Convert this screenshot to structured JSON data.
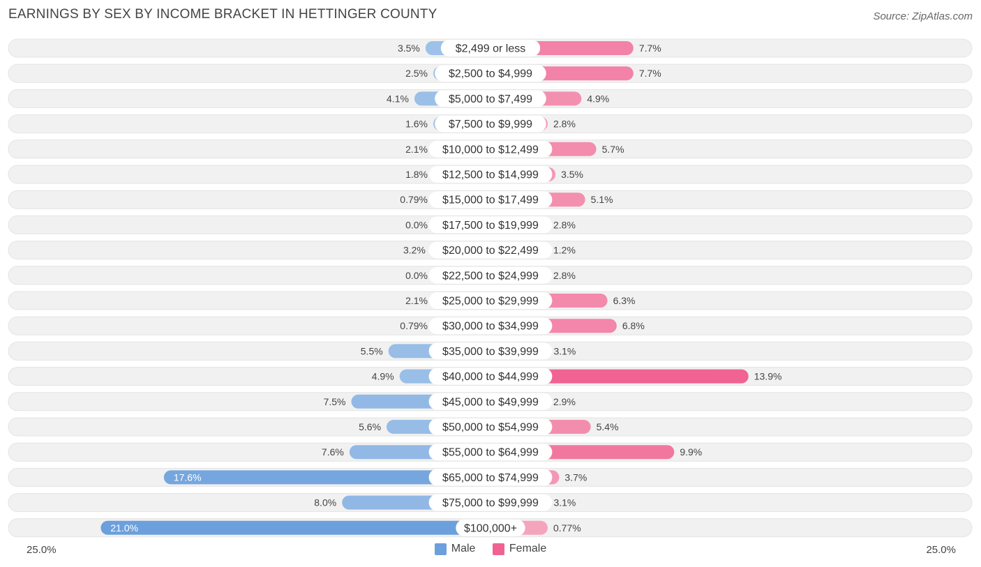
{
  "title": "EARNINGS BY SEX BY INCOME BRACKET IN HETTINGER COUNTY",
  "source": "Source: ZipAtlas.com",
  "axis": {
    "left_label": "25.0%",
    "right_label": "25.0%"
  },
  "legend": {
    "male_label": "Male",
    "female_label": "Female"
  },
  "colors": {
    "male": "#6ca0dc",
    "male_light": "#a7c7ea",
    "female": "#f06292",
    "female_light": "#f5a8c0",
    "row_bg": "#f1f1f1"
  },
  "chart_data": {
    "type": "bar",
    "orientation": "horizontal-diverging",
    "title": "EARNINGS BY SEX BY INCOME BRACKET IN HETTINGER COUNTY",
    "xlim": [
      -25.0,
      25.0
    ],
    "categories": [
      "$2,499 or less",
      "$2,500 to $4,999",
      "$5,000 to $7,499",
      "$7,500 to $9,999",
      "$10,000 to $12,499",
      "$12,500 to $14,999",
      "$15,000 to $17,499",
      "$17,500 to $19,999",
      "$20,000 to $22,499",
      "$22,500 to $24,999",
      "$25,000 to $29,999",
      "$30,000 to $34,999",
      "$35,000 to $39,999",
      "$40,000 to $44,999",
      "$45,000 to $49,999",
      "$50,000 to $54,999",
      "$55,000 to $64,999",
      "$65,000 to $74,999",
      "$75,000 to $99,999",
      "$100,000+"
    ],
    "series": [
      {
        "name": "Male",
        "values": [
          3.5,
          2.5,
          4.1,
          1.6,
          2.1,
          1.8,
          0.79,
          0.0,
          3.2,
          0.0,
          2.1,
          0.79,
          5.5,
          4.9,
          7.5,
          5.6,
          7.6,
          17.6,
          8.0,
          21.0
        ],
        "labels": [
          "3.5%",
          "2.5%",
          "4.1%",
          "1.6%",
          "2.1%",
          "1.8%",
          "0.79%",
          "0.0%",
          "3.2%",
          "0.0%",
          "2.1%",
          "0.79%",
          "5.5%",
          "4.9%",
          "7.5%",
          "5.6%",
          "7.6%",
          "17.6%",
          "8.0%",
          "21.0%"
        ]
      },
      {
        "name": "Female",
        "values": [
          7.7,
          7.7,
          4.9,
          2.8,
          5.7,
          3.5,
          5.1,
          2.8,
          1.2,
          2.8,
          6.3,
          6.8,
          3.1,
          13.9,
          2.9,
          5.4,
          9.9,
          3.7,
          3.1,
          0.77
        ],
        "labels": [
          "7.7%",
          "7.7%",
          "4.9%",
          "2.8%",
          "5.7%",
          "3.5%",
          "5.1%",
          "2.8%",
          "1.2%",
          "2.8%",
          "6.3%",
          "6.8%",
          "3.1%",
          "13.9%",
          "2.9%",
          "5.4%",
          "9.9%",
          "3.7%",
          "3.1%",
          "0.77%"
        ]
      }
    ]
  }
}
